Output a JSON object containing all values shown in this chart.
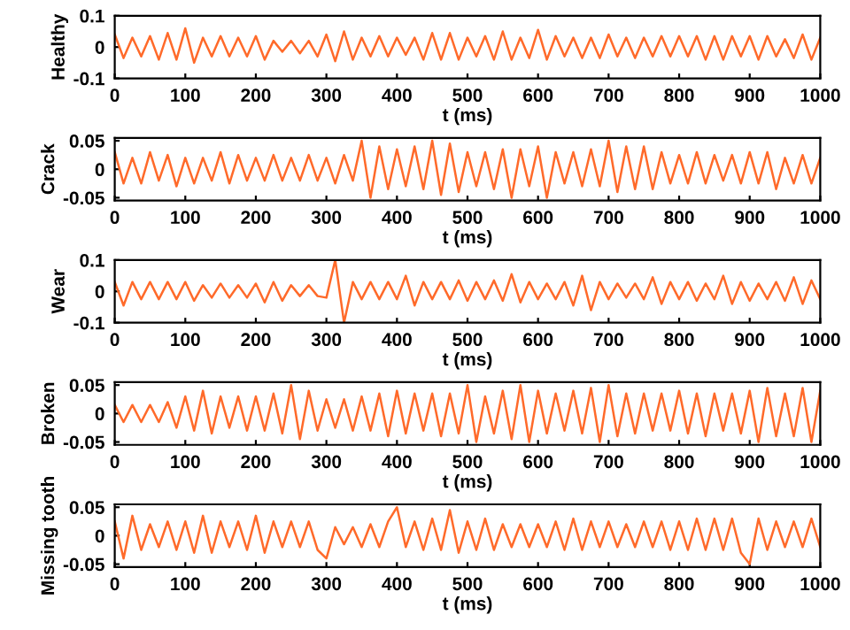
{
  "chart_data": [
    {
      "type": "line",
      "xlabel": "t (ms)",
      "ylabel": "Healthy",
      "xlim": [
        0,
        1000
      ],
      "xticks": [
        0,
        100,
        200,
        300,
        400,
        500,
        600,
        700,
        800,
        900,
        1000
      ],
      "ylim": [
        -0.1,
        0.1
      ],
      "yticks": [
        -0.1,
        0,
        0.1
      ],
      "grid": false,
      "series": [
        {
          "color": "#ff6a2a",
          "x": [
            0,
            12.5,
            25,
            37.5,
            50,
            62.5,
            75,
            87.5,
            100,
            112.5,
            125,
            137.5,
            150,
            162.5,
            175,
            187.5,
            200,
            212.5,
            225,
            237.5,
            250,
            262.5,
            275,
            287.5,
            300,
            312.5,
            325,
            337.5,
            350,
            362.5,
            375,
            387.5,
            400,
            412.5,
            425,
            437.5,
            450,
            462.5,
            475,
            487.5,
            500,
            512.5,
            525,
            537.5,
            550,
            562.5,
            575,
            587.5,
            600,
            612.5,
            625,
            637.5,
            650,
            662.5,
            675,
            687.5,
            700,
            712.5,
            725,
            737.5,
            750,
            762.5,
            775,
            787.5,
            800,
            812.5,
            825,
            837.5,
            850,
            862.5,
            875,
            887.5,
            900,
            912.5,
            925,
            937.5,
            950,
            962.5,
            975,
            987.5,
            1000
          ],
          "values": [
            0.04,
            -0.035,
            0.03,
            -0.03,
            0.035,
            -0.04,
            0.045,
            -0.04,
            0.06,
            -0.05,
            0.03,
            -0.03,
            0.035,
            -0.03,
            0.03,
            -0.03,
            0.035,
            -0.04,
            0.02,
            -0.015,
            0.02,
            -0.02,
            0.02,
            -0.03,
            0.04,
            -0.045,
            0.05,
            -0.04,
            0.03,
            -0.03,
            0.035,
            -0.03,
            0.03,
            -0.025,
            0.03,
            -0.04,
            0.045,
            -0.04,
            0.045,
            -0.04,
            0.03,
            -0.03,
            0.035,
            -0.04,
            0.05,
            -0.04,
            0.03,
            -0.035,
            0.055,
            -0.04,
            0.035,
            -0.03,
            0.03,
            -0.035,
            0.03,
            -0.035,
            0.04,
            -0.03,
            0.03,
            -0.035,
            0.03,
            -0.03,
            0.035,
            -0.03,
            0.035,
            -0.03,
            0.035,
            -0.04,
            0.035,
            -0.04,
            0.035,
            -0.03,
            0.035,
            -0.04,
            0.035,
            -0.03,
            0.025,
            -0.035,
            0.04,
            -0.04,
            0.03
          ]
        }
      ]
    },
    {
      "type": "line",
      "xlabel": "t (ms)",
      "ylabel": "Crack",
      "xlim": [
        0,
        1000
      ],
      "xticks": [
        0,
        100,
        200,
        300,
        400,
        500,
        600,
        700,
        800,
        900,
        1000
      ],
      "ylim": [
        -0.055,
        0.055
      ],
      "yticks": [
        -0.05,
        0,
        0.05
      ],
      "grid": false,
      "series": [
        {
          "color": "#ff6a2a",
          "x": [
            0,
            12.5,
            25,
            37.5,
            50,
            62.5,
            75,
            87.5,
            100,
            112.5,
            125,
            137.5,
            150,
            162.5,
            175,
            187.5,
            200,
            212.5,
            225,
            237.5,
            250,
            262.5,
            275,
            287.5,
            300,
            312.5,
            325,
            337.5,
            350,
            362.5,
            375,
            387.5,
            400,
            412.5,
            425,
            437.5,
            450,
            462.5,
            475,
            487.5,
            500,
            512.5,
            525,
            537.5,
            550,
            562.5,
            575,
            587.5,
            600,
            612.5,
            625,
            637.5,
            650,
            662.5,
            675,
            687.5,
            700,
            712.5,
            725,
            737.5,
            750,
            762.5,
            775,
            787.5,
            800,
            812.5,
            825,
            837.5,
            850,
            862.5,
            875,
            887.5,
            900,
            912.5,
            925,
            937.5,
            950,
            962.5,
            975,
            987.5,
            1000
          ],
          "values": [
            0.03,
            -0.025,
            0.02,
            -0.025,
            0.03,
            -0.02,
            0.025,
            -0.03,
            0.02,
            -0.025,
            0.02,
            -0.02,
            0.03,
            -0.025,
            0.025,
            -0.02,
            0.02,
            -0.02,
            0.025,
            -0.02,
            0.02,
            -0.02,
            0.025,
            -0.02,
            0.02,
            -0.025,
            0.025,
            -0.02,
            0.05,
            -0.05,
            0.04,
            -0.035,
            0.035,
            -0.03,
            0.04,
            -0.035,
            0.05,
            -0.045,
            0.045,
            -0.04,
            0.03,
            -0.03,
            0.03,
            -0.035,
            0.035,
            -0.05,
            0.035,
            -0.03,
            0.04,
            -0.05,
            0.03,
            -0.025,
            0.03,
            -0.03,
            0.035,
            -0.03,
            0.05,
            -0.04,
            0.04,
            -0.035,
            0.04,
            -0.035,
            0.03,
            -0.025,
            0.025,
            -0.025,
            0.03,
            -0.025,
            0.025,
            -0.02,
            0.025,
            -0.025,
            0.03,
            -0.025,
            0.03,
            -0.035,
            0.02,
            -0.025,
            0.025,
            -0.025,
            0.02
          ]
        }
      ]
    },
    {
      "type": "line",
      "xlabel": "t (ms)",
      "ylabel": "Wear",
      "xlim": [
        0,
        1000
      ],
      "xticks": [
        0,
        100,
        200,
        300,
        400,
        500,
        600,
        700,
        800,
        900,
        1000
      ],
      "ylim": [
        -0.1,
        0.1
      ],
      "yticks": [
        -0.1,
        0,
        0.1
      ],
      "grid": false,
      "series": [
        {
          "color": "#ff6a2a",
          "x": [
            0,
            12.5,
            25,
            37.5,
            50,
            62.5,
            75,
            87.5,
            100,
            112.5,
            125,
            137.5,
            150,
            162.5,
            175,
            187.5,
            200,
            212.5,
            225,
            237.5,
            250,
            262.5,
            275,
            287.5,
            300,
            312.5,
            325,
            337.5,
            350,
            362.5,
            375,
            387.5,
            400,
            412.5,
            425,
            437.5,
            450,
            462.5,
            475,
            487.5,
            500,
            512.5,
            525,
            537.5,
            550,
            562.5,
            575,
            587.5,
            600,
            612.5,
            625,
            637.5,
            650,
            662.5,
            675,
            687.5,
            700,
            712.5,
            725,
            737.5,
            750,
            762.5,
            775,
            787.5,
            800,
            812.5,
            825,
            837.5,
            850,
            862.5,
            875,
            887.5,
            900,
            912.5,
            925,
            937.5,
            950,
            962.5,
            975,
            987.5,
            1000
          ],
          "values": [
            0.03,
            -0.045,
            0.03,
            -0.025,
            0.03,
            -0.025,
            0.03,
            -0.025,
            0.03,
            -0.03,
            0.02,
            -0.02,
            0.025,
            -0.02,
            0.02,
            -0.02,
            0.025,
            -0.035,
            0.03,
            -0.03,
            0.02,
            -0.015,
            0.02,
            -0.015,
            -0.02,
            0.1,
            -0.1,
            0.03,
            -0.025,
            0.03,
            -0.025,
            0.03,
            -0.025,
            0.05,
            -0.045,
            0.03,
            -0.025,
            0.03,
            -0.025,
            0.035,
            -0.03,
            0.03,
            -0.025,
            0.035,
            -0.03,
            0.055,
            -0.035,
            0.03,
            -0.025,
            0.025,
            -0.025,
            0.03,
            -0.045,
            0.05,
            -0.06,
            0.03,
            -0.025,
            0.025,
            -0.02,
            0.025,
            -0.025,
            0.045,
            -0.04,
            0.03,
            -0.025,
            0.03,
            -0.03,
            0.025,
            -0.025,
            0.05,
            -0.04,
            0.03,
            -0.03,
            0.025,
            -0.025,
            0.03,
            -0.03,
            0.045,
            -0.04,
            0.035,
            -0.025
          ]
        }
      ]
    },
    {
      "type": "line",
      "xlabel": "t (ms)",
      "ylabel": "Broken",
      "xlim": [
        0,
        1000
      ],
      "xticks": [
        0,
        100,
        200,
        300,
        400,
        500,
        600,
        700,
        800,
        900,
        1000
      ],
      "ylim": [
        -0.055,
        0.055
      ],
      "yticks": [
        -0.05,
        0,
        0.05
      ],
      "grid": false,
      "series": [
        {
          "color": "#ff6a2a",
          "x": [
            0,
            12.5,
            25,
            37.5,
            50,
            62.5,
            75,
            87.5,
            100,
            112.5,
            125,
            137.5,
            150,
            162.5,
            175,
            187.5,
            200,
            212.5,
            225,
            237.5,
            250,
            262.5,
            275,
            287.5,
            300,
            312.5,
            325,
            337.5,
            350,
            362.5,
            375,
            387.5,
            400,
            412.5,
            425,
            437.5,
            450,
            462.5,
            475,
            487.5,
            500,
            512.5,
            525,
            537.5,
            550,
            562.5,
            575,
            587.5,
            600,
            612.5,
            625,
            637.5,
            650,
            662.5,
            675,
            687.5,
            700,
            712.5,
            725,
            737.5,
            750,
            762.5,
            775,
            787.5,
            800,
            812.5,
            825,
            837.5,
            850,
            862.5,
            875,
            887.5,
            900,
            912.5,
            925,
            937.5,
            950,
            962.5,
            975,
            987.5,
            1000
          ],
          "values": [
            0.015,
            -0.015,
            0.015,
            -0.015,
            0.015,
            -0.015,
            0.02,
            -0.025,
            0.03,
            -0.03,
            0.04,
            -0.035,
            0.03,
            -0.025,
            0.03,
            -0.03,
            0.03,
            -0.03,
            0.035,
            -0.035,
            0.05,
            -0.045,
            0.04,
            -0.03,
            0.025,
            -0.025,
            0.025,
            -0.03,
            0.03,
            -0.03,
            0.035,
            -0.04,
            0.04,
            -0.035,
            0.035,
            -0.03,
            0.035,
            -0.04,
            0.035,
            -0.035,
            0.05,
            -0.05,
            0.03,
            -0.035,
            0.04,
            -0.045,
            0.05,
            -0.05,
            0.04,
            -0.035,
            0.035,
            -0.03,
            0.04,
            -0.035,
            0.045,
            -0.05,
            0.05,
            -0.04,
            0.035,
            -0.035,
            0.035,
            -0.03,
            0.035,
            -0.03,
            0.04,
            -0.035,
            0.035,
            -0.04,
            0.035,
            -0.03,
            0.035,
            -0.035,
            0.04,
            -0.05,
            0.045,
            -0.04,
            0.035,
            -0.04,
            0.045,
            -0.05,
            0.04
          ]
        }
      ]
    },
    {
      "type": "line",
      "xlabel": "t (ms)",
      "ylabel": "Missing tooth",
      "xlim": [
        0,
        1000
      ],
      "xticks": [
        0,
        100,
        200,
        300,
        400,
        500,
        600,
        700,
        800,
        900,
        1000
      ],
      "ylim": [
        -0.055,
        0.055
      ],
      "yticks": [
        -0.05,
        0,
        0.05
      ],
      "grid": false,
      "series": [
        {
          "color": "#ff6a2a",
          "x": [
            0,
            12.5,
            25,
            37.5,
            50,
            62.5,
            75,
            87.5,
            100,
            112.5,
            125,
            137.5,
            150,
            162.5,
            175,
            187.5,
            200,
            212.5,
            225,
            237.5,
            250,
            262.5,
            275,
            287.5,
            300,
            312.5,
            325,
            337.5,
            350,
            362.5,
            375,
            387.5,
            400,
            412.5,
            425,
            437.5,
            450,
            462.5,
            475,
            487.5,
            500,
            512.5,
            525,
            537.5,
            550,
            562.5,
            575,
            587.5,
            600,
            612.5,
            625,
            637.5,
            650,
            662.5,
            675,
            687.5,
            700,
            712.5,
            725,
            737.5,
            750,
            762.5,
            775,
            787.5,
            800,
            812.5,
            825,
            837.5,
            850,
            862.5,
            875,
            887.5,
            900,
            912.5,
            925,
            937.5,
            950,
            962.5,
            975,
            987.5,
            1000
          ],
          "values": [
            0.025,
            -0.04,
            0.035,
            -0.025,
            0.02,
            -0.02,
            0.025,
            -0.025,
            0.025,
            -0.03,
            0.035,
            -0.03,
            0.025,
            -0.02,
            0.025,
            -0.025,
            0.035,
            -0.03,
            0.025,
            -0.02,
            0.025,
            -0.02,
            0.025,
            -0.025,
            -0.04,
            0.015,
            -0.015,
            0.015,
            -0.02,
            0.02,
            -0.02,
            0.025,
            0.05,
            -0.02,
            0.025,
            -0.025,
            0.03,
            -0.025,
            0.045,
            -0.03,
            0.025,
            -0.025,
            0.03,
            -0.025,
            0.02,
            -0.02,
            0.02,
            -0.02,
            0.02,
            -0.02,
            0.025,
            -0.025,
            0.03,
            -0.025,
            0.025,
            -0.02,
            0.025,
            -0.02,
            0.02,
            -0.02,
            0.025,
            -0.02,
            0.025,
            -0.025,
            0.025,
            -0.025,
            0.03,
            -0.025,
            0.03,
            -0.025,
            0.03,
            -0.03,
            -0.05,
            0.03,
            -0.025,
            0.025,
            -0.02,
            0.025,
            -0.02,
            0.03,
            -0.02
          ]
        }
      ]
    }
  ]
}
